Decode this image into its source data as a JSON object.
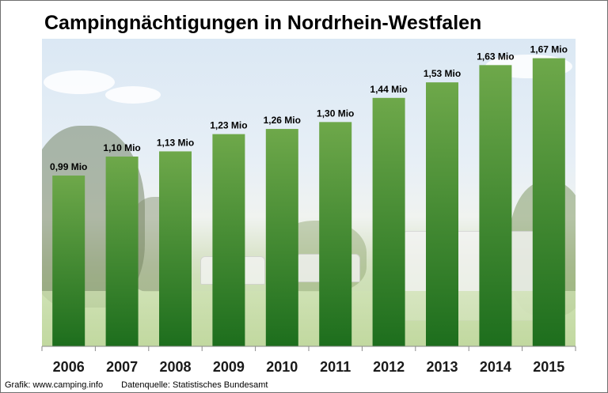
{
  "chart_data": {
    "type": "bar",
    "title": "Campingnächtigungen in Nordrhein-Westfalen",
    "categories": [
      "2006",
      "2007",
      "2008",
      "2009",
      "2010",
      "2011",
      "2012",
      "2013",
      "2014",
      "2015"
    ],
    "values": [
      0.99,
      1.1,
      1.13,
      1.23,
      1.26,
      1.3,
      1.44,
      1.53,
      1.63,
      1.67
    ],
    "data_labels": [
      "0,99 Mio",
      "1,10 Mio",
      "1,13 Mio",
      "1,23 Mio",
      "1,26 Mio",
      "1,30 Mio",
      "1,44 Mio",
      "1,53 Mio",
      "1,63 Mio",
      "1,67 Mio"
    ],
    "xlabel": "",
    "ylabel": "",
    "ylim": [
      0,
      1.8
    ],
    "grid": false,
    "legend": "none",
    "bar_color_top": "#6ea84a",
    "bar_color_bottom": "#1d6e1d"
  },
  "footer": {
    "credit": "Grafik: www.camping.info",
    "source": "Datenquelle:  Statistisches Bundesamt"
  }
}
